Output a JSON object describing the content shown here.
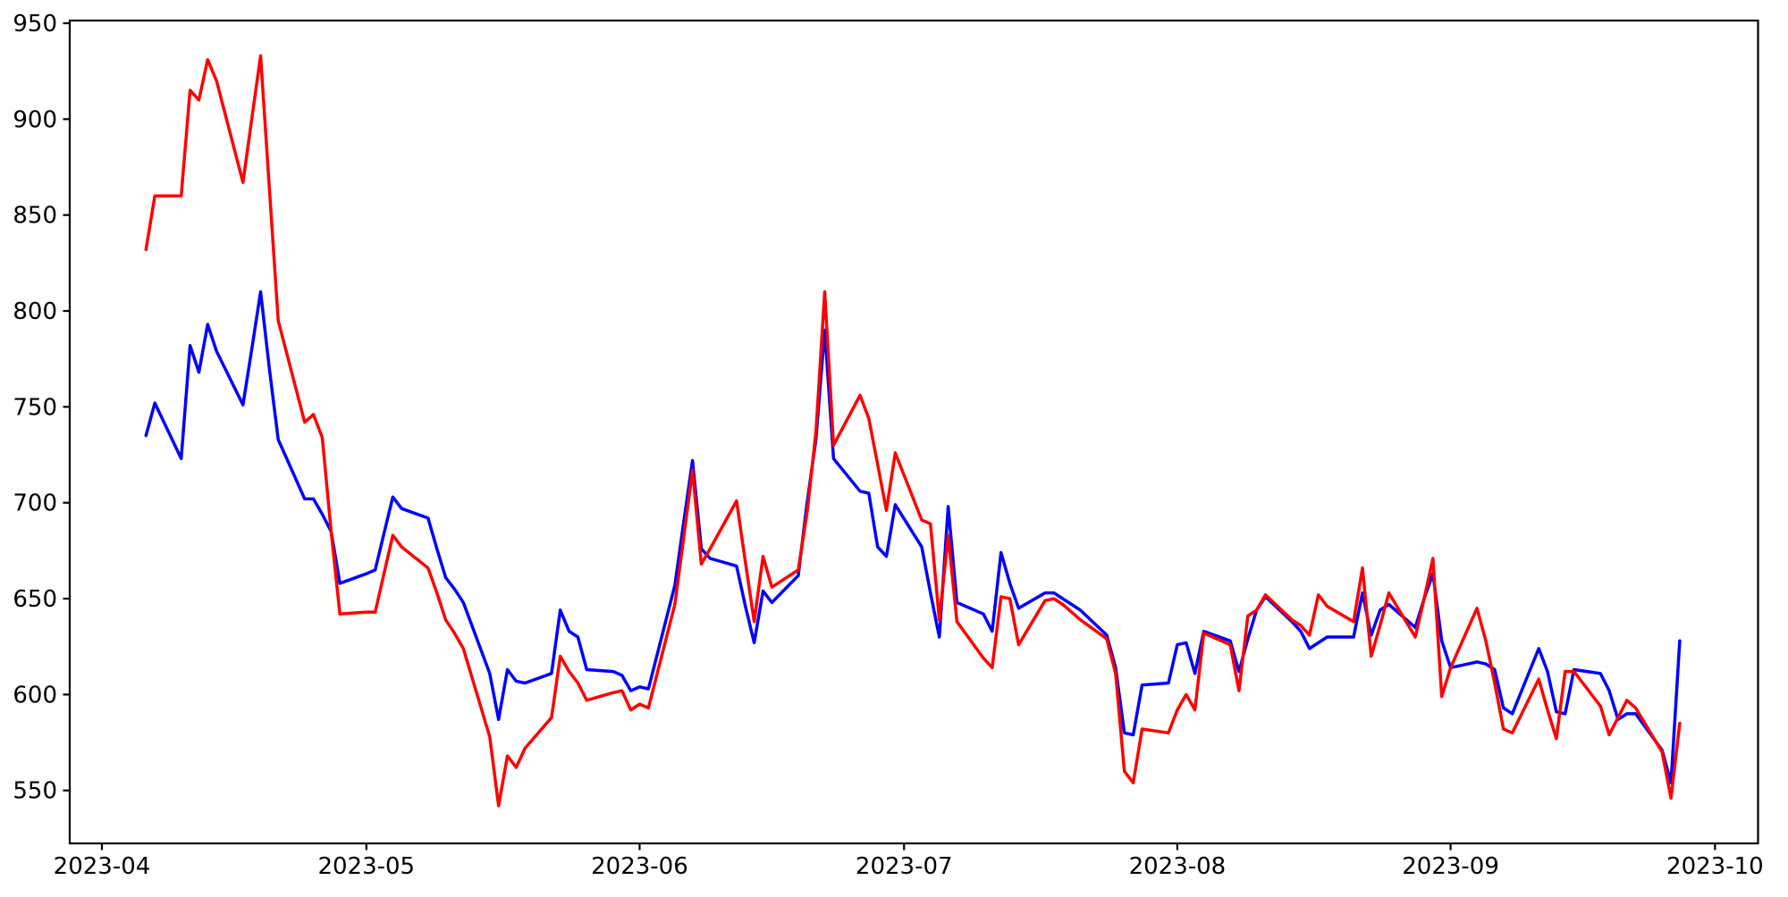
{
  "chart_data": {
    "type": "line",
    "title": "",
    "xlabel": "",
    "ylabel": "",
    "grid": false,
    "legend_position": "none",
    "background_color": "#ffffff",
    "axis_color": "#000000",
    "x_tick_labels": [
      "2023-04",
      "2023-05",
      "2023-06",
      "2023-07",
      "2023-08",
      "2023-09",
      "2023-10"
    ],
    "x_tick_month_day_offsets": [
      0,
      30,
      61,
      91,
      122,
      153,
      183
    ],
    "y_tick_labels": [
      550,
      600,
      650,
      700,
      750,
      800,
      850,
      900,
      950
    ],
    "ylim": [
      522.4,
      951.4
    ],
    "xlim_days_from_2023_04_01": [
      -3.7,
      187.7
    ],
    "x_dates": [
      "2023-04-06",
      "2023-04-07",
      "2023-04-10",
      "2023-04-11",
      "2023-04-12",
      "2023-04-13",
      "2023-04-14",
      "2023-04-17",
      "2023-04-18",
      "2023-04-19",
      "2023-04-20",
      "2023-04-21",
      "2023-04-24",
      "2023-04-25",
      "2023-04-26",
      "2023-04-27",
      "2023-04-28",
      "2023-05-01",
      "2023-05-02",
      "2023-05-03",
      "2023-05-04",
      "2023-05-05",
      "2023-05-08",
      "2023-05-09",
      "2023-05-10",
      "2023-05-11",
      "2023-05-12",
      "2023-05-15",
      "2023-05-16",
      "2023-05-17",
      "2023-05-18",
      "2023-05-19",
      "2023-05-22",
      "2023-05-23",
      "2023-05-24",
      "2023-05-25",
      "2023-05-26",
      "2023-05-29",
      "2023-05-30",
      "2023-05-31",
      "2023-06-01",
      "2023-06-02",
      "2023-06-05",
      "2023-06-06",
      "2023-06-07",
      "2023-06-08",
      "2023-06-09",
      "2023-06-12",
      "2023-06-13",
      "2023-06-14",
      "2023-06-15",
      "2023-06-16",
      "2023-06-19",
      "2023-06-20",
      "2023-06-21",
      "2023-06-22",
      "2023-06-23",
      "2023-06-26",
      "2023-06-27",
      "2023-06-28",
      "2023-06-29",
      "2023-06-30",
      "2023-07-03",
      "2023-07-04",
      "2023-07-05",
      "2023-07-06",
      "2023-07-07",
      "2023-07-10",
      "2023-07-11",
      "2023-07-12",
      "2023-07-13",
      "2023-07-14",
      "2023-07-17",
      "2023-07-18",
      "2023-07-19",
      "2023-07-20",
      "2023-07-21",
      "2023-07-24",
      "2023-07-25",
      "2023-07-26",
      "2023-07-27",
      "2023-07-28",
      "2023-07-31",
      "2023-08-01",
      "2023-08-02",
      "2023-08-03",
      "2023-08-04",
      "2023-08-07",
      "2023-08-08",
      "2023-08-09",
      "2023-08-10",
      "2023-08-11",
      "2023-08-14",
      "2023-08-15",
      "2023-08-16",
      "2023-08-17",
      "2023-08-18",
      "2023-08-21",
      "2023-08-22",
      "2023-08-23",
      "2023-08-24",
      "2023-08-25",
      "2023-08-28",
      "2023-08-29",
      "2023-08-30",
      "2023-08-31",
      "2023-09-01",
      "2023-09-04",
      "2023-09-05",
      "2023-09-06",
      "2023-09-07",
      "2023-09-08",
      "2023-09-11",
      "2023-09-12",
      "2023-09-13",
      "2023-09-14",
      "2023-09-15",
      "2023-09-18",
      "2023-09-19",
      "2023-09-20",
      "2023-09-21",
      "2023-09-22",
      "2023-09-25",
      "2023-09-26",
      "2023-09-27"
    ],
    "series": [
      {
        "name": "blue-series",
        "color": "#0000ff",
        "values": [
          735,
          752,
          723,
          782,
          768,
          793,
          779,
          751,
          780,
          810,
          770,
          733,
          702,
          702,
          694,
          685,
          658,
          663,
          665,
          684,
          703,
          697,
          692,
          676,
          661,
          655,
          648,
          611,
          587,
          613,
          607,
          606,
          611,
          644,
          633,
          630,
          613,
          612,
          610,
          602,
          604,
          603,
          657,
          690,
          722,
          676,
          671,
          667,
          646,
          627,
          654,
          648,
          662,
          700,
          733,
          790,
          723,
          706,
          705,
          677,
          672,
          699,
          677,
          653,
          630,
          698,
          648,
          642,
          633,
          674,
          658,
          645,
          653,
          653,
          650,
          647,
          644,
          631,
          614,
          580,
          579,
          605,
          606,
          626,
          627,
          611,
          633,
          628,
          612,
          629,
          644,
          651,
          638,
          633,
          624,
          627,
          630,
          630,
          653,
          631,
          644,
          647,
          635,
          650,
          663,
          628,
          614,
          617,
          616,
          613,
          593,
          590,
          624,
          612,
          591,
          590,
          613,
          611,
          602,
          587,
          590,
          590,
          571,
          554,
          628
        ]
      },
      {
        "name": "red-series",
        "color": "#ff0000",
        "values": [
          832,
          860,
          860,
          915,
          910,
          931,
          920,
          867,
          900,
          933,
          864,
          795,
          742,
          746,
          734,
          685,
          642,
          643,
          643,
          663,
          683,
          677,
          666,
          653,
          639,
          632,
          624,
          578,
          542,
          568,
          562,
          572,
          588,
          620,
          612,
          606,
          597,
          601,
          602,
          592,
          595,
          593,
          647,
          682,
          717,
          668,
          676,
          701,
          669,
          638,
          672,
          656,
          665,
          695,
          737,
          810,
          730,
          756,
          744,
          720,
          696,
          726,
          691,
          689,
          639,
          683,
          638,
          619,
          614,
          651,
          650,
          626,
          649,
          650,
          647,
          643,
          639,
          629,
          611,
          560,
          554,
          582,
          580,
          592,
          600,
          592,
          632,
          626,
          602,
          641,
          644,
          652,
          639,
          636,
          631,
          652,
          646,
          638,
          666,
          620,
          636,
          653,
          630,
          650,
          671,
          599,
          614,
          645,
          628,
          606,
          582,
          580,
          608,
          592,
          577,
          612,
          612,
          594,
          579,
          588,
          597,
          593,
          570,
          546,
          585
        ]
      }
    ]
  }
}
